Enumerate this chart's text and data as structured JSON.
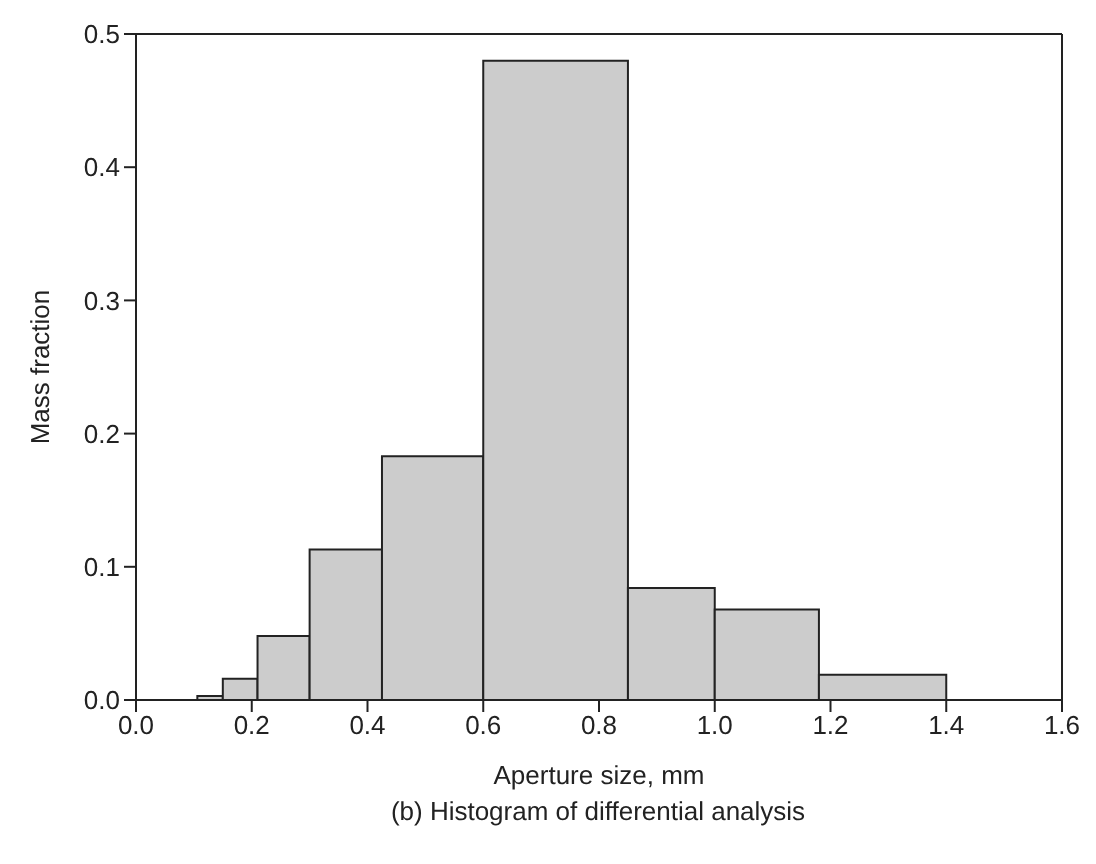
{
  "chart_data": {
    "type": "histogram",
    "xlabel": "Aperture size, mm",
    "ylabel": "Mass fraction",
    "annotations": [
      "(b) Histogram of differential analysis"
    ],
    "bins": [
      0.106,
      0.15,
      0.21,
      0.3,
      0.425,
      0.6,
      0.85,
      1.0,
      1.18,
      1.4
    ],
    "values": [
      0.003,
      0.016,
      0.048,
      0.113,
      0.183,
      0.48,
      0.084,
      0.068,
      0.019
    ],
    "color": "#cccccc",
    "xlim": [
      0,
      1.6
    ],
    "xticks": [
      {
        "value": 0,
        "label": "0.0"
      },
      0.2,
      0.4,
      0.6,
      0.8,
      {
        "value": 1,
        "label": "1.0"
      },
      1.2,
      1.4,
      1.6
    ],
    "ylim": [
      0,
      0.5
    ],
    "yticks": [
      {
        "value": 0,
        "label": "0.0"
      },
      0.1,
      0.2,
      0.3,
      0.4,
      0.5
    ],
    "grid": false
  }
}
